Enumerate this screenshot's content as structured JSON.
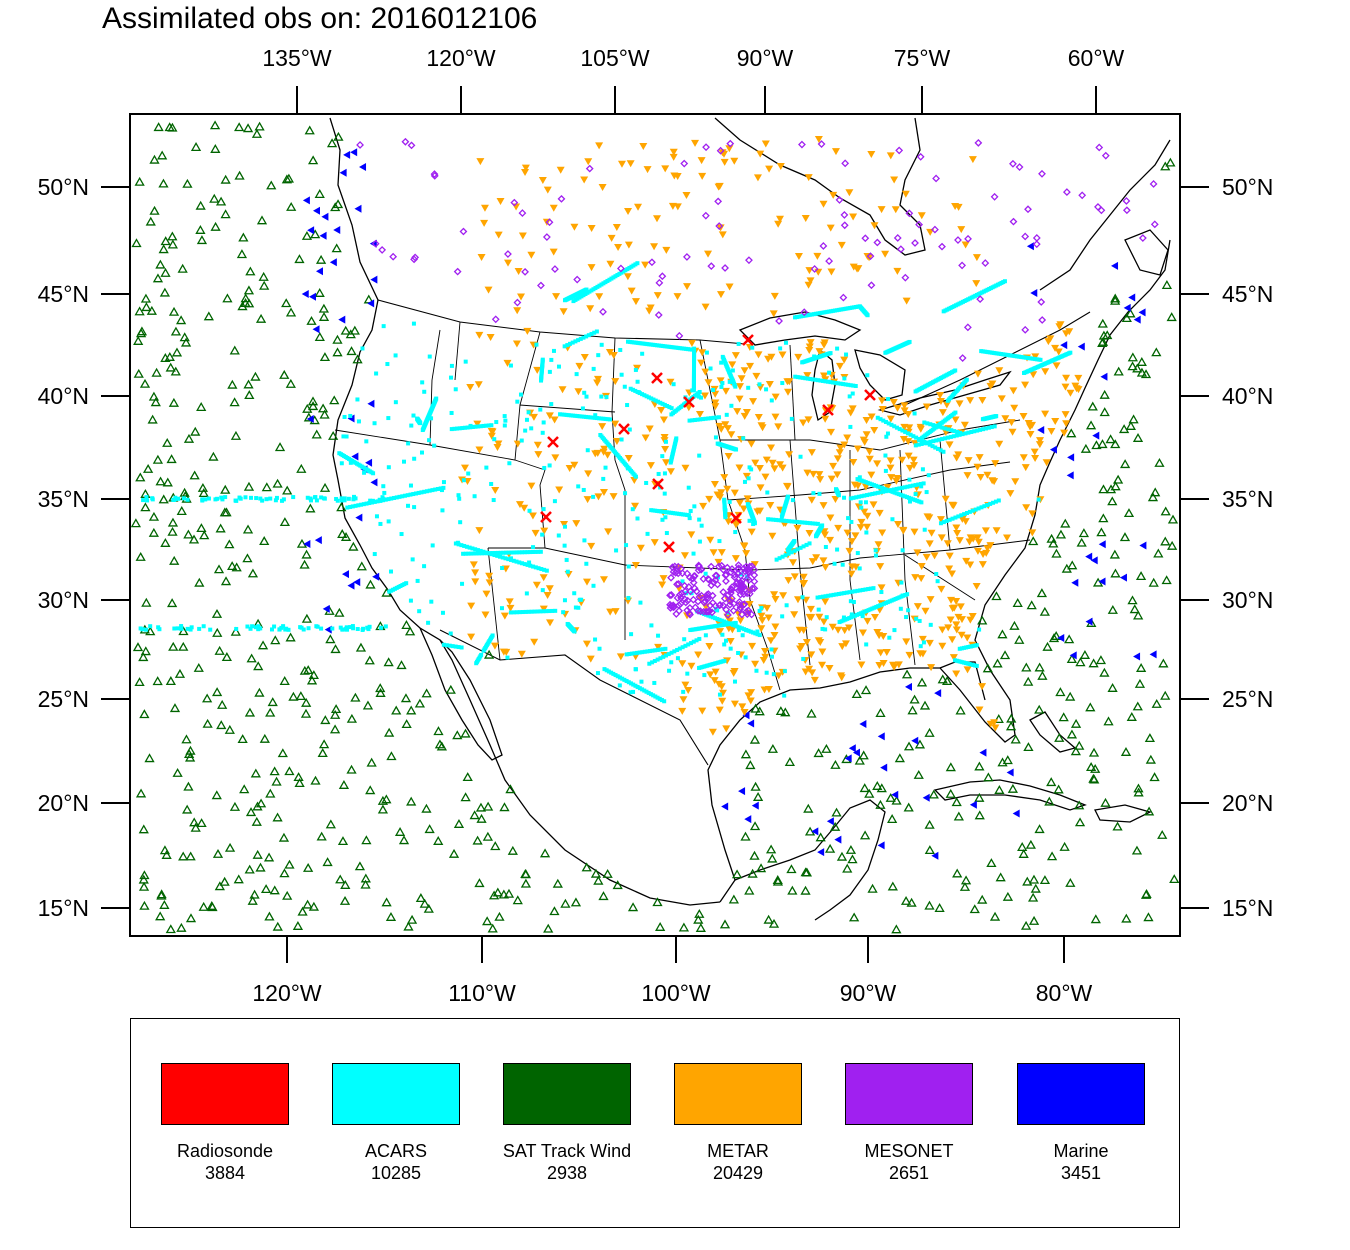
{
  "title": "Assimilated obs on: 2016012106",
  "map": {
    "top_lon_labels": [
      "135°W",
      "120°W",
      "105°W",
      "90°W",
      "75°W",
      "60°W"
    ],
    "bottom_lon_labels": [
      "120°W",
      "110°W",
      "100°W",
      "90°W",
      "80°W"
    ],
    "lat_labels": [
      "50°N",
      "45°N",
      "40°N",
      "35°N",
      "30°N",
      "25°N",
      "20°N",
      "15°N"
    ],
    "region": "Continental United States, southern Canada, Mexico, Gulf of Mexico, Caribbean and adjacent Pacific/Atlantic oceans"
  },
  "legend": [
    {
      "name": "Radiosonde",
      "count": "3884",
      "color": "#ff0000",
      "marker": "x-icon"
    },
    {
      "name": "ACARS",
      "count": "10285",
      "color": "#00ffff",
      "marker": "square-dot-icon"
    },
    {
      "name": "SAT Track Wind",
      "count": "2938",
      "color": "#006400",
      "marker": "triangle-up-icon"
    },
    {
      "name": "METAR",
      "count": "20429",
      "color": "#ffa500",
      "marker": "triangle-down-icon"
    },
    {
      "name": "MESONET",
      "count": "2651",
      "color": "#a020f0",
      "marker": "diamond-icon"
    },
    {
      "name": "Marine",
      "count": "3451",
      "color": "#0000ff",
      "marker": "triangle-left-icon"
    }
  ]
}
